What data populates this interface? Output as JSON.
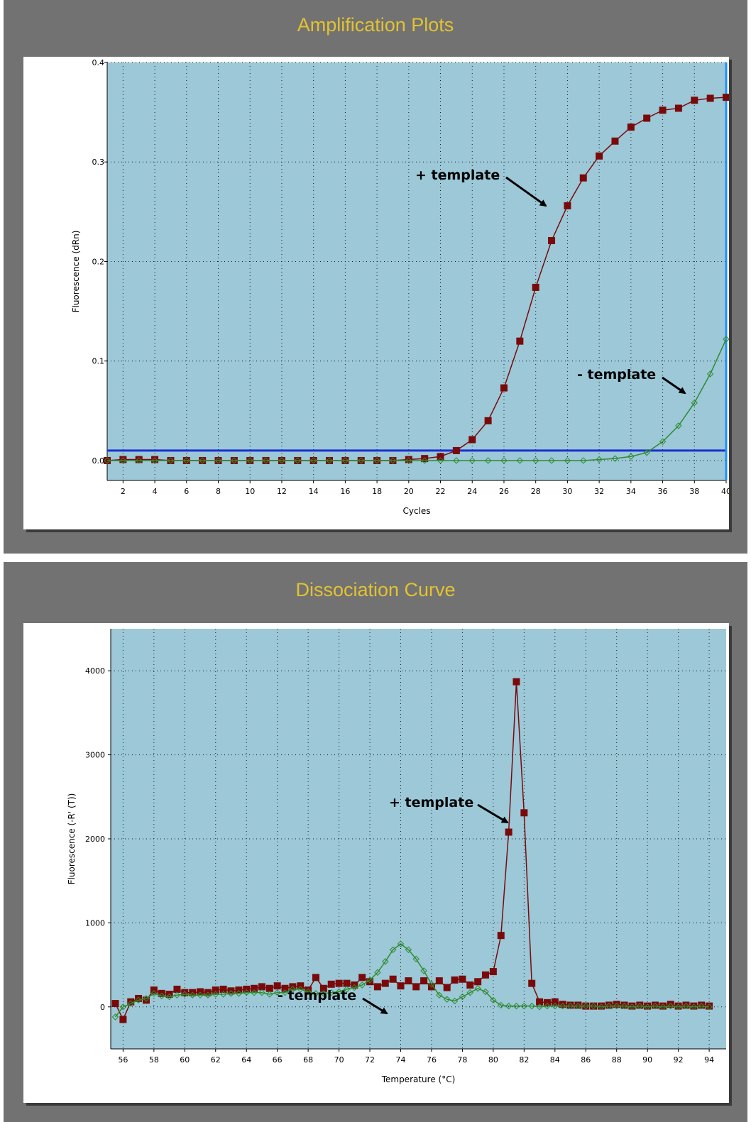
{
  "chart_data": [
    {
      "type": "line",
      "panel_title": "Amplification Plots",
      "xlabel": "Cycles",
      "ylabel": "Fluorescence (dRn)",
      "xlim": [
        1,
        40
      ],
      "ylim": [
        -0.02,
        0.4
      ],
      "x_ticks": [
        2,
        4,
        6,
        8,
        10,
        12,
        14,
        16,
        18,
        20,
        22,
        24,
        26,
        28,
        30,
        32,
        34,
        36,
        38,
        40
      ],
      "y_ticks": [
        0.0,
        0.1,
        0.2,
        0.3,
        0.4
      ],
      "y_tick_labels": [
        "0.0",
        "0.1",
        "0.2",
        "0.3",
        "0.4"
      ],
      "grid": true,
      "plot_background": "#9cc8d8",
      "threshold": 0.01,
      "threshold_color": "#1a2fd0",
      "cursor_x": 40,
      "cursor_color": "#1e90ff",
      "annotations": [
        {
          "text": "+ template",
          "series": 0
        },
        {
          "text": "- template",
          "series": 1
        }
      ],
      "series": [
        {
          "color": "#7a0a0a",
          "marker": "square",
          "x": [
            1,
            2,
            3,
            4,
            5,
            6,
            7,
            8,
            9,
            10,
            11,
            12,
            13,
            14,
            15,
            16,
            17,
            18,
            19,
            20,
            21,
            22,
            23,
            24,
            25,
            26,
            27,
            28,
            29,
            30,
            31,
            32,
            33,
            34,
            35,
            36,
            37,
            38,
            39,
            40
          ],
          "y": [
            0.0,
            0.001,
            0.001,
            0.001,
            0.0,
            0.0,
            0.0,
            0.0,
            0.0,
            0.0,
            0.0,
            0.0,
            0.0,
            0.0,
            0.0,
            0.0,
            0.0,
            0.0,
            0.0,
            0.001,
            0.002,
            0.004,
            0.01,
            0.021,
            0.04,
            0.073,
            0.12,
            0.174,
            0.221,
            0.256,
            0.284,
            0.306,
            0.321,
            0.335,
            0.344,
            0.352,
            0.354,
            0.362,
            0.364,
            0.365
          ]
        },
        {
          "color": "#2e8b2e",
          "marker": "diamond-open",
          "x": [
            1,
            2,
            3,
            4,
            5,
            6,
            7,
            8,
            9,
            10,
            11,
            12,
            13,
            14,
            15,
            16,
            17,
            18,
            19,
            20,
            21,
            22,
            23,
            24,
            25,
            26,
            27,
            28,
            29,
            30,
            31,
            32,
            33,
            34,
            35,
            36,
            37,
            38,
            39,
            40
          ],
          "y": [
            0.0,
            0.0,
            0.0,
            0.0,
            0.0,
            0.0,
            0.0,
            0.0,
            0.0,
            0.0,
            0.0,
            0.0,
            0.0,
            0.0,
            0.0,
            0.0,
            0.0,
            0.0,
            0.0,
            0.0,
            0.0,
            0.0,
            0.0,
            0.0,
            0.0,
            0.0,
            0.0,
            0.0,
            0.0,
            0.0,
            0.0,
            0.001,
            0.002,
            0.004,
            0.008,
            0.019,
            0.035,
            0.058,
            0.087,
            0.122
          ]
        }
      ]
    },
    {
      "type": "line",
      "panel_title": "Dissociation Curve",
      "xlabel": "Temperature (°C)",
      "ylabel": "Fluorescence (-R' (T))",
      "xlim": [
        55.2,
        95.1
      ],
      "ylim": [
        -500,
        4500
      ],
      "x_ticks": [
        56,
        58,
        60,
        62,
        64,
        66,
        68,
        70,
        72,
        74,
        76,
        78,
        80,
        82,
        84,
        86,
        88,
        90,
        92,
        94
      ],
      "y_ticks": [
        0,
        1000,
        2000,
        3000,
        4000
      ],
      "y_tick_labels": [
        "0",
        "1000",
        "2000",
        "3000",
        "4000"
      ],
      "grid": true,
      "plot_background": "#9cc8d8",
      "annotations": [
        {
          "text": "+ template",
          "series": 0
        },
        {
          "text": "- template",
          "series": 1
        }
      ],
      "series": [
        {
          "color": "#7a0a0a",
          "marker": "square",
          "x": [
            55.5,
            56.0,
            56.5,
            57.0,
            57.5,
            58.0,
            58.5,
            59.0,
            59.5,
            60.0,
            60.5,
            61.0,
            61.5,
            62.0,
            62.5,
            63.0,
            63.5,
            64.0,
            64.5,
            65.0,
            65.5,
            66.0,
            66.5,
            67.0,
            67.5,
            68.0,
            68.5,
            69.0,
            69.5,
            70.0,
            70.5,
            71.0,
            71.5,
            72.0,
            72.5,
            73.0,
            73.5,
            74.0,
            74.5,
            75.0,
            75.5,
            76.0,
            76.5,
            77.0,
            77.5,
            78.0,
            78.5,
            79.0,
            79.5,
            80.0,
            80.5,
            81.0,
            81.5,
            82.0,
            82.5,
            83.0,
            83.5,
            84.0,
            84.5,
            85.0,
            85.5,
            86.0,
            86.5,
            87.0,
            87.5,
            88.0,
            88.5,
            89.0,
            89.5,
            90.0,
            90.5,
            91.0,
            91.5,
            92.0,
            92.5,
            93.0,
            93.5,
            94.0
          ],
          "y": [
            40,
            -150,
            60,
            100,
            80,
            200,
            160,
            150,
            210,
            170,
            170,
            180,
            170,
            200,
            210,
            190,
            200,
            210,
            220,
            240,
            220,
            250,
            220,
            240,
            250,
            200,
            350,
            220,
            270,
            280,
            280,
            260,
            350,
            300,
            240,
            280,
            330,
            250,
            310,
            240,
            310,
            240,
            310,
            230,
            320,
            330,
            260,
            300,
            380,
            420,
            850,
            2080,
            3870,
            2310,
            280,
            60,
            50,
            60,
            30,
            20,
            20,
            10,
            10,
            10,
            20,
            30,
            20,
            10,
            20,
            10,
            20,
            10,
            30,
            10,
            20,
            10,
            20,
            10
          ]
        },
        {
          "color": "#2e8b2e",
          "marker": "diamond-open",
          "x": [
            55.5,
            56.0,
            56.5,
            57.0,
            57.5,
            58.0,
            58.5,
            59.0,
            59.5,
            60.0,
            60.5,
            61.0,
            61.5,
            62.0,
            62.5,
            63.0,
            63.5,
            64.0,
            64.5,
            65.0,
            65.5,
            66.0,
            66.5,
            67.0,
            67.5,
            68.0,
            68.5,
            69.0,
            69.5,
            70.0,
            70.5,
            71.0,
            71.5,
            72.0,
            72.5,
            73.0,
            73.5,
            74.0,
            74.5,
            75.0,
            75.5,
            76.0,
            76.5,
            77.0,
            77.5,
            78.0,
            78.5,
            79.0,
            79.5,
            80.0,
            80.5,
            81.0,
            81.5,
            82.0,
            82.5,
            83.0,
            83.5,
            84.0,
            84.5,
            85.0,
            85.5,
            86.0,
            86.5,
            87.0,
            87.5,
            88.0,
            88.5,
            89.0,
            89.5,
            90.0,
            90.5,
            91.0,
            91.5,
            92.0,
            92.5,
            93.0,
            93.5,
            94.0
          ],
          "y": [
            -120,
            0,
            40,
            80,
            100,
            160,
            130,
            120,
            140,
            150,
            140,
            140,
            140,
            150,
            150,
            160,
            160,
            170,
            170,
            170,
            150,
            170,
            170,
            210,
            210,
            180,
            160,
            160,
            170,
            180,
            210,
            230,
            260,
            320,
            410,
            540,
            680,
            750,
            680,
            570,
            430,
            270,
            140,
            90,
            70,
            120,
            170,
            220,
            180,
            80,
            20,
            10,
            10,
            10,
            10,
            0,
            10,
            10,
            10,
            10,
            10,
            10,
            10,
            0,
            10,
            10,
            10,
            0,
            10,
            0,
            10,
            0,
            10,
            0,
            10,
            0,
            10,
            0
          ]
        }
      ]
    }
  ]
}
